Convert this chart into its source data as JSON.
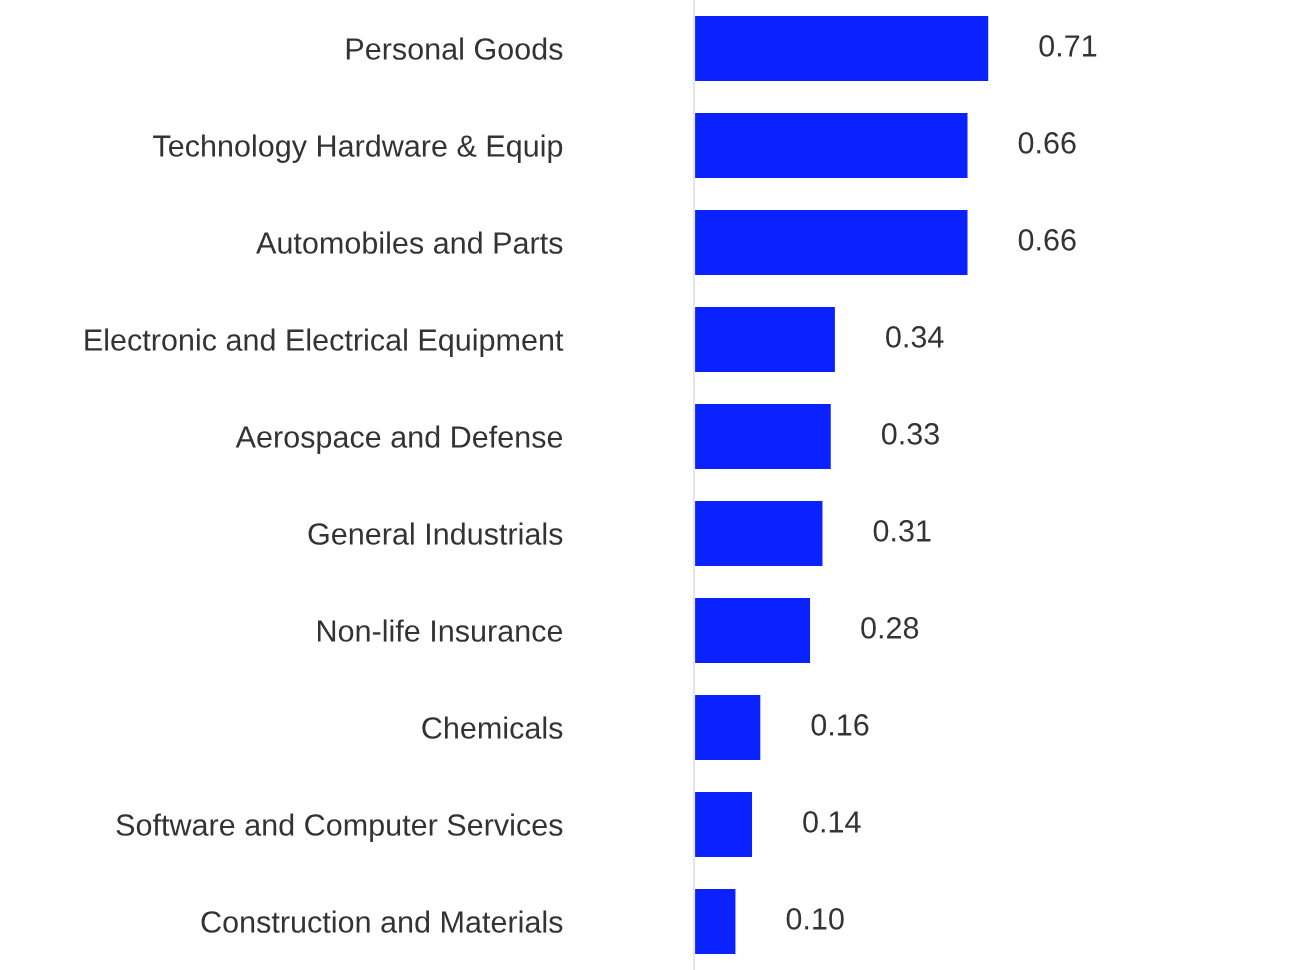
{
  "chart_data": {
    "type": "bar",
    "orientation": "horizontal",
    "categories": [
      "Personal Goods",
      "Technology Hardware & Equip",
      "Automobiles and Parts",
      "Electronic and Electrical Equipment",
      "Aerospace and Defense",
      "General Industrials",
      "Non-life Insurance",
      "Chemicals",
      "Software and Computer Services",
      "Construction and Materials"
    ],
    "values": [
      0.71,
      0.66,
      0.66,
      0.34,
      0.33,
      0.31,
      0.28,
      0.16,
      0.14,
      0.1
    ],
    "value_labels": [
      "0.71",
      "0.66",
      "0.66",
      "0.34",
      "0.33",
      "0.31",
      "0.28",
      "0.16",
      "0.14",
      "0.10"
    ],
    "color": "#0a22ff",
    "grid": false,
    "legend": false
  }
}
